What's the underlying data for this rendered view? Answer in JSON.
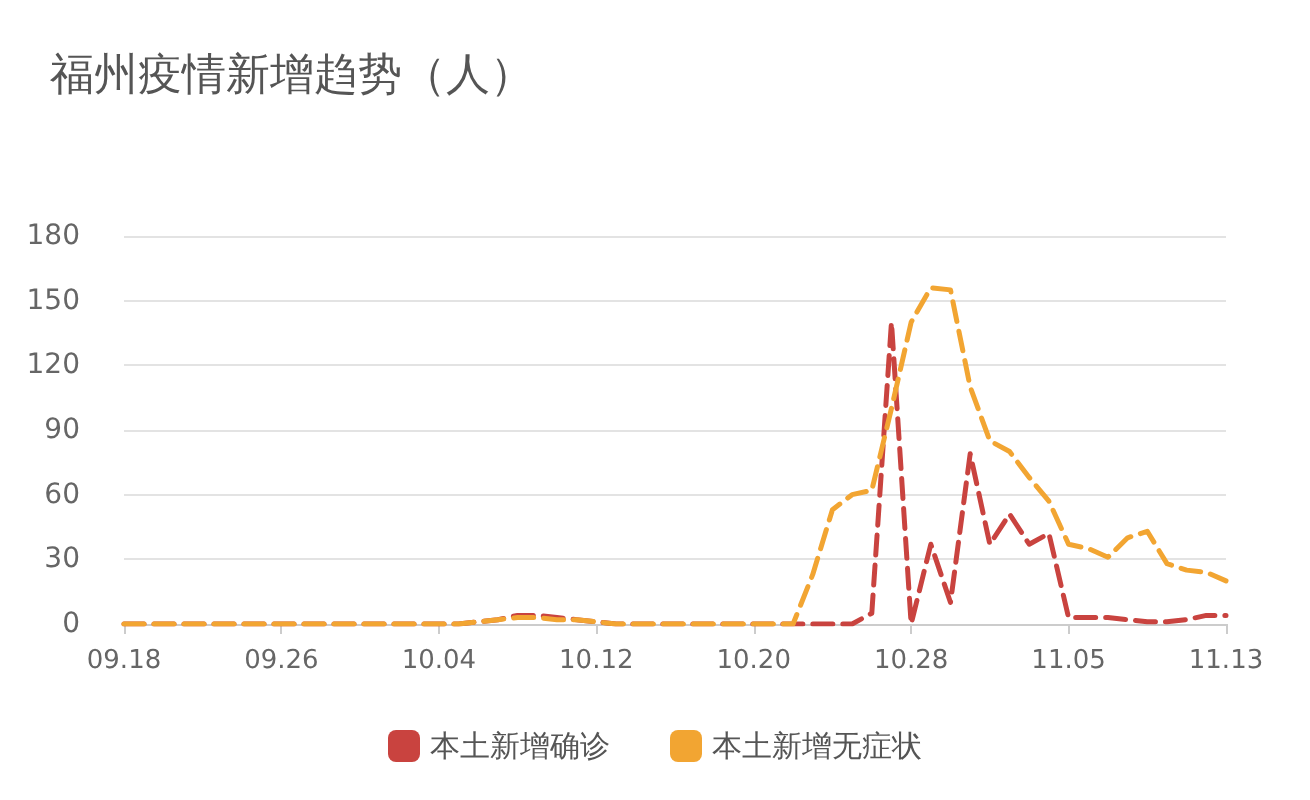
{
  "chart_data": {
    "type": "line",
    "title": "福州疫情新增趋势（人）",
    "categories": [
      "09.18",
      null,
      null,
      null,
      null,
      null,
      null,
      null,
      "09.26",
      null,
      null,
      null,
      null,
      null,
      null,
      null,
      "10.04",
      null,
      null,
      null,
      null,
      null,
      null,
      null,
      "10.12",
      null,
      null,
      null,
      null,
      null,
      null,
      null,
      "10.20",
      null,
      null,
      null,
      null,
      null,
      null,
      null,
      "10.28",
      null,
      null,
      null,
      null,
      null,
      null,
      null,
      "11.05",
      null,
      null,
      null,
      null,
      null,
      null,
      null,
      "11.13"
    ],
    "series": [
      {
        "name": "本土新增确诊",
        "color": "#c9433f",
        "values": [
          0,
          0,
          0,
          0,
          0,
          0,
          0,
          0,
          0,
          0,
          0,
          0,
          0,
          0,
          0,
          0,
          0,
          0,
          1,
          2,
          4,
          4,
          3,
          2,
          1,
          0,
          0,
          0,
          0,
          0,
          0,
          0,
          0,
          0,
          0,
          0,
          0,
          0,
          5,
          140,
          0,
          37,
          10,
          79,
          37,
          51,
          37,
          42,
          3,
          3,
          3,
          2,
          1,
          1,
          2,
          4,
          4
        ]
      },
      {
        "name": "本土新增无症状",
        "color": "#f2a532",
        "values": [
          0,
          0,
          0,
          0,
          0,
          0,
          0,
          0,
          0,
          0,
          0,
          0,
          0,
          0,
          0,
          0,
          0,
          0,
          1,
          2,
          3,
          3,
          2,
          2,
          1,
          0,
          0,
          0,
          0,
          0,
          0,
          0,
          0,
          0,
          0,
          23,
          53,
          60,
          62,
          100,
          140,
          156,
          155,
          110,
          85,
          80,
          68,
          57,
          37,
          35,
          31,
          40,
          43,
          28,
          25,
          24,
          20
        ]
      }
    ],
    "ylim": [
      0,
      180
    ],
    "yticks": [
      0,
      30,
      60,
      90,
      120,
      150,
      180
    ],
    "grid": "y",
    "legend": "bottom",
    "marker": "none",
    "line_style": "dashed"
  }
}
